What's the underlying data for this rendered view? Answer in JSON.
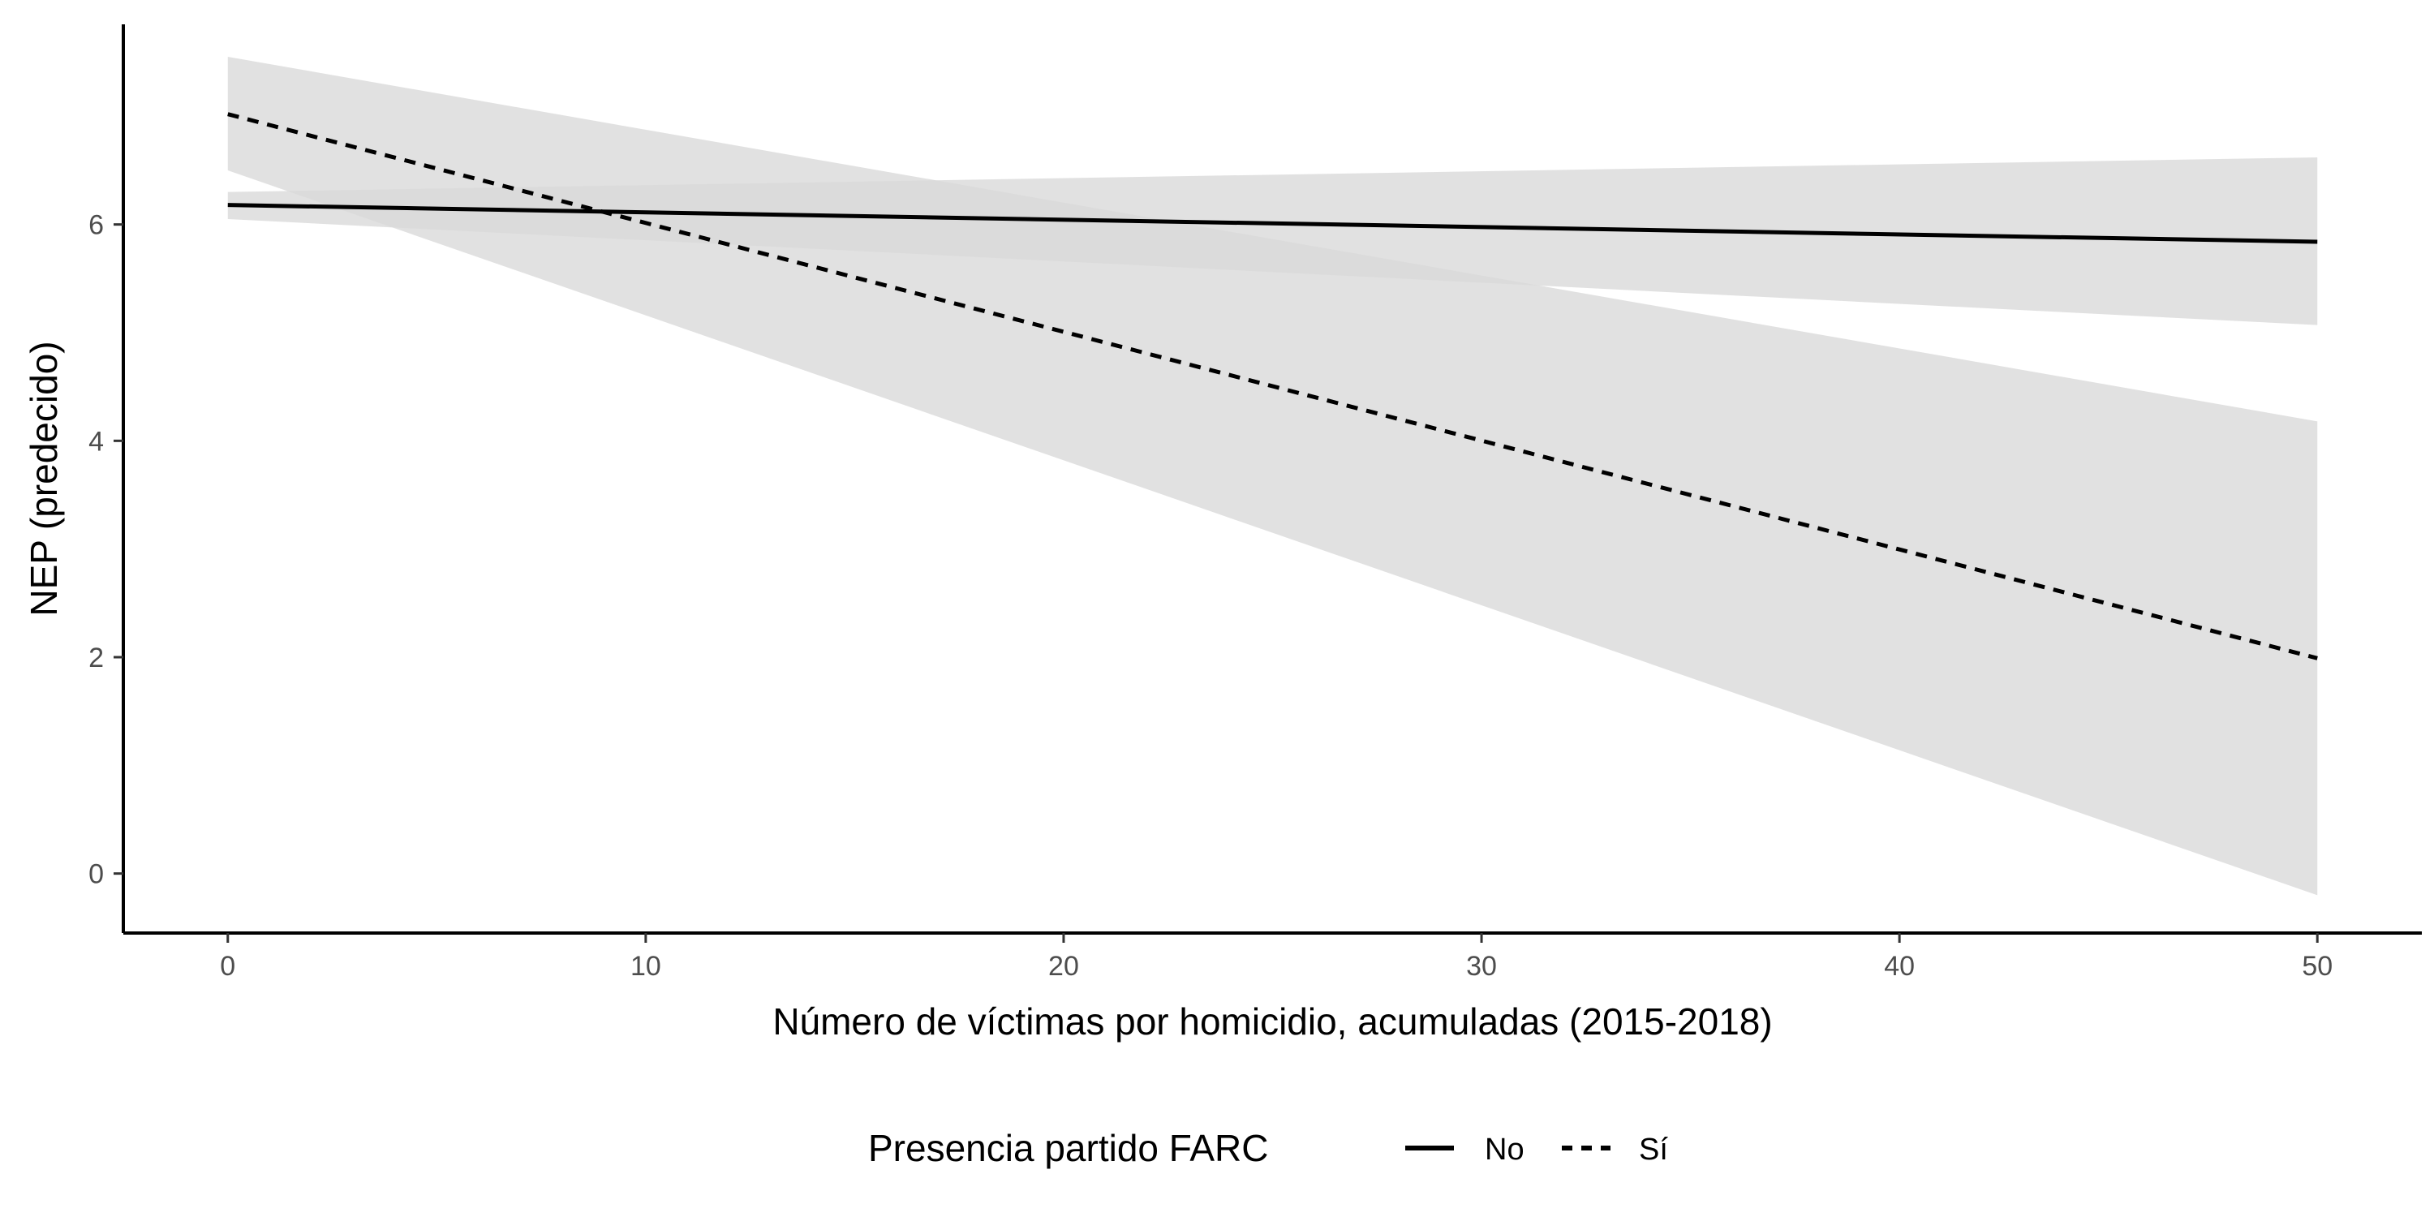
{
  "chart_data": {
    "type": "line",
    "title": "",
    "xlabel": "Número de víctimas por homicidio, acumuladas (2015-2018)",
    "ylabel": "NEP (predecido)",
    "xlim": [
      -2.5,
      52.5
    ],
    "ylim": [
      -0.55,
      7.85
    ],
    "x_ticks": [
      "0",
      "10",
      "20",
      "30",
      "40",
      "50"
    ],
    "y_ticks": [
      "0",
      "2",
      "4",
      "6"
    ],
    "grid": false,
    "legend": {
      "title": "Presencia partido FARC",
      "position": "bottom"
    },
    "series": [
      {
        "name": "No",
        "line_style": "solid",
        "x": [
          0,
          50
        ],
        "y": [
          6.18,
          5.84
        ],
        "ci_lower": [
          6.05,
          5.07
        ],
        "ci_upper": [
          6.3,
          6.62
        ]
      },
      {
        "name": "Sí",
        "line_style": "dashed",
        "x": [
          0,
          50
        ],
        "y": [
          7.02,
          1.99
        ],
        "ci_lower": [
          6.5,
          -0.2
        ],
        "ci_upper": [
          7.55,
          4.18
        ]
      }
    ],
    "colors": {
      "line": "#000000",
      "ribbon": "#d9d9d9",
      "axis": "#000000",
      "tick_text": "#4d4d4d"
    }
  }
}
